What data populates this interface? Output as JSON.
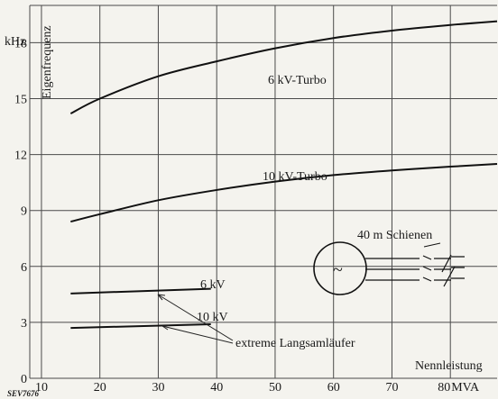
{
  "chart_data": {
    "type": "line",
    "xlabel": "Nennleistung",
    "ylabel": "Eigenfrequenz",
    "y_unit": "kHz",
    "xlim": [
      8,
      88
    ],
    "ylim": [
      0,
      20
    ],
    "x_ticks": [
      10,
      20,
      30,
      40,
      50,
      60,
      70,
      80
    ],
    "x_tick_labels": [
      "10",
      "20",
      "30",
      "40",
      "50",
      "60",
      "70",
      "80"
    ],
    "x_unit_suffix": "MVA",
    "y_ticks": [
      3,
      6,
      9,
      12,
      15,
      18
    ],
    "y_tick_labels": [
      "3",
      "6",
      "9",
      "12",
      "15",
      "18"
    ],
    "origin_label": "0",
    "grid": true,
    "series": [
      {
        "name": "6 kV-Turbo",
        "x": [
          15,
          20,
          30,
          40,
          50,
          60,
          70,
          80,
          88
        ],
        "y": [
          14.2,
          15.0,
          16.2,
          17.0,
          17.7,
          18.25,
          18.65,
          18.95,
          19.15
        ]
      },
      {
        "name": "10 kV-Turbo",
        "x": [
          15,
          20,
          30,
          40,
          50,
          60,
          70,
          80,
          88
        ],
        "y": [
          8.4,
          8.8,
          9.55,
          10.1,
          10.55,
          10.9,
          11.15,
          11.35,
          11.5
        ]
      },
      {
        "name": "6 kV",
        "x": [
          15,
          39
        ],
        "y": [
          4.55,
          4.8
        ]
      },
      {
        "name": "10 kV",
        "x": [
          15,
          39
        ],
        "y": [
          2.7,
          2.9
        ]
      }
    ],
    "annotations": {
      "group_label": "extreme Langsamläufer",
      "schematic_label": "40 m Schienen",
      "generator_symbol": "~",
      "figure_code": "SEV7676"
    }
  }
}
